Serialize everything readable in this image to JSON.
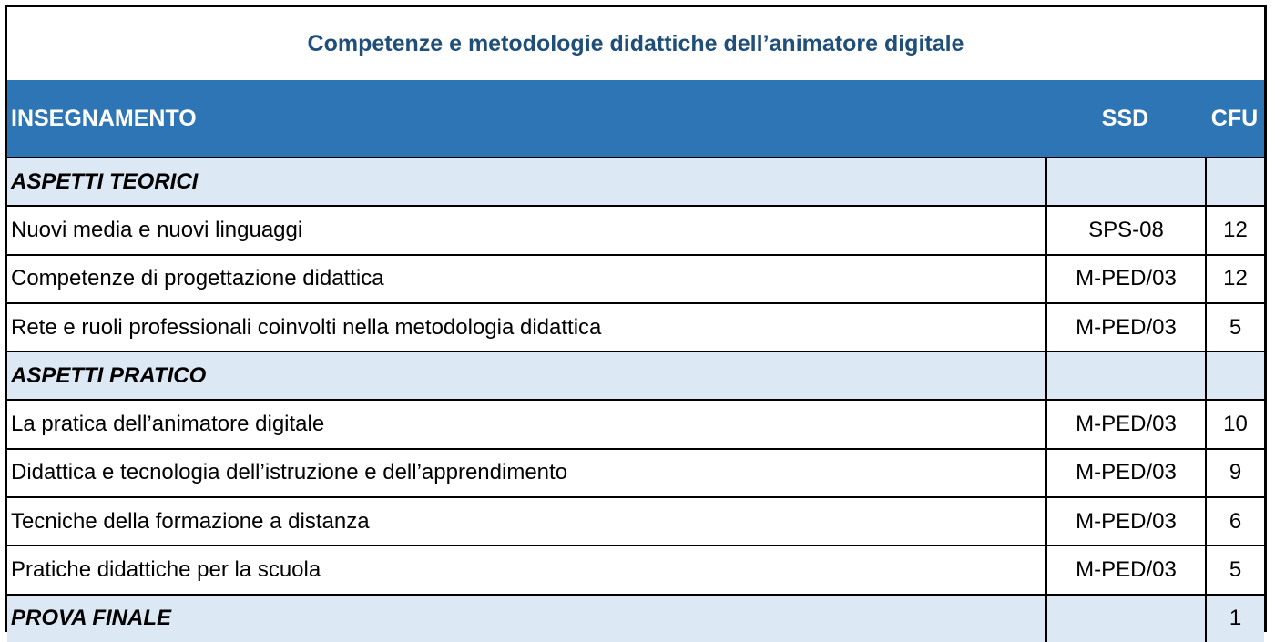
{
  "title": "Competenze e metodologie didattiche dell’animatore digitale",
  "header": {
    "col1": "INSEGNAMENTO",
    "col2": "SSD",
    "col3": "CFU"
  },
  "rows": [
    {
      "type": "section",
      "name": "ASPETTI TEORICI",
      "ssd": "",
      "cfu": ""
    },
    {
      "type": "course",
      "name": "Nuovi media e nuovi linguaggi",
      "ssd": "SPS-08",
      "cfu": "12"
    },
    {
      "type": "course",
      "name": "Competenze di progettazione didattica",
      "ssd": "M-PED/03",
      "cfu": "12"
    },
    {
      "type": "course",
      "name": "Rete e ruoli professionali coinvolti nella metodologia didattica",
      "ssd": "M-PED/03",
      "cfu": "5"
    },
    {
      "type": "section",
      "name": "ASPETTI PRATICO",
      "ssd": "",
      "cfu": ""
    },
    {
      "type": "course",
      "name": "La pratica dell’animatore digitale",
      "ssd": "M-PED/03",
      "cfu": "10"
    },
    {
      "type": "course",
      "name": "Didattica e tecnologia dell’istruzione e dell’apprendimento",
      "ssd": "M-PED/03",
      "cfu": "9"
    },
    {
      "type": "course",
      "name": "Tecniche della formazione a distanza",
      "ssd": "M-PED/03",
      "cfu": "6"
    },
    {
      "type": "course",
      "name": "Pratiche didattiche per la scuola",
      "ssd": "M-PED/03",
      "cfu": "5"
    },
    {
      "type": "section",
      "name": "PROVA FINALE",
      "ssd": "",
      "cfu": "1"
    }
  ]
}
